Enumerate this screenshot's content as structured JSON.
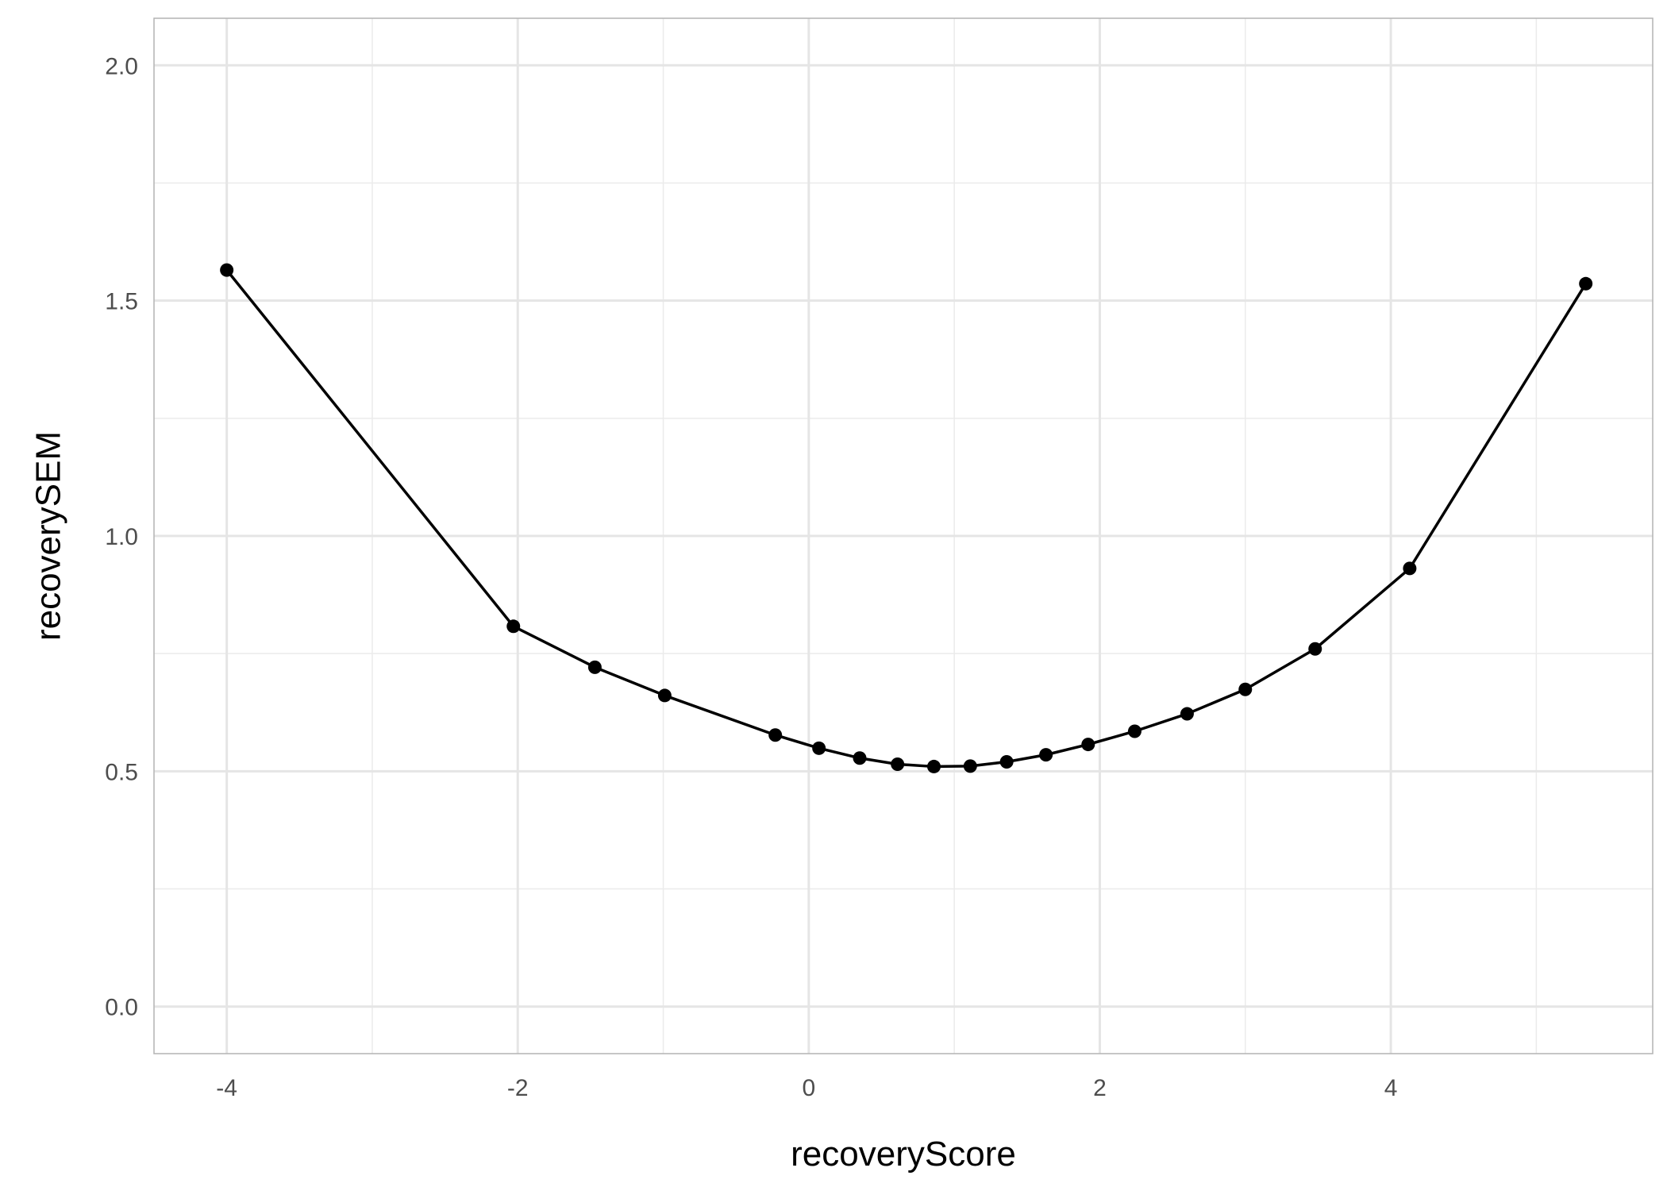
{
  "chart_data": {
    "type": "line",
    "title": "",
    "xlabel": "recoveryScore",
    "ylabel": "recoverySEM",
    "xlim": [
      -4.5,
      5.8
    ],
    "ylim": [
      -0.1,
      2.1
    ],
    "x_ticks": [
      -4,
      -2,
      0,
      2,
      4
    ],
    "x_tick_labels": [
      "-4",
      "-2",
      "0",
      "2",
      "4"
    ],
    "y_ticks": [
      0.0,
      0.5,
      1.0,
      1.5,
      2.0
    ],
    "y_tick_labels": [
      "0.0",
      "0.5",
      "1.0",
      "1.5",
      "2.0"
    ],
    "grid": true,
    "legend": "none",
    "series": [
      {
        "color": "#000000",
        "markers": true,
        "points": [
          {
            "x": -4.0,
            "y": 1.565
          },
          {
            "x": -2.03,
            "y": 0.808
          },
          {
            "x": -1.47,
            "y": 0.721
          },
          {
            "x": -0.99,
            "y": 0.661
          },
          {
            "x": -0.23,
            "y": 0.577
          },
          {
            "x": 0.07,
            "y": 0.549
          },
          {
            "x": 0.35,
            "y": 0.528
          },
          {
            "x": 0.61,
            "y": 0.515
          },
          {
            "x": 0.86,
            "y": 0.51
          },
          {
            "x": 1.11,
            "y": 0.511
          },
          {
            "x": 1.36,
            "y": 0.52
          },
          {
            "x": 1.63,
            "y": 0.535
          },
          {
            "x": 1.92,
            "y": 0.557
          },
          {
            "x": 2.24,
            "y": 0.585
          },
          {
            "x": 2.6,
            "y": 0.622
          },
          {
            "x": 3.0,
            "y": 0.674
          },
          {
            "x": 3.48,
            "y": 0.76
          },
          {
            "x": 4.13,
            "y": 0.931
          },
          {
            "x": 5.34,
            "y": 1.536
          }
        ]
      }
    ]
  }
}
